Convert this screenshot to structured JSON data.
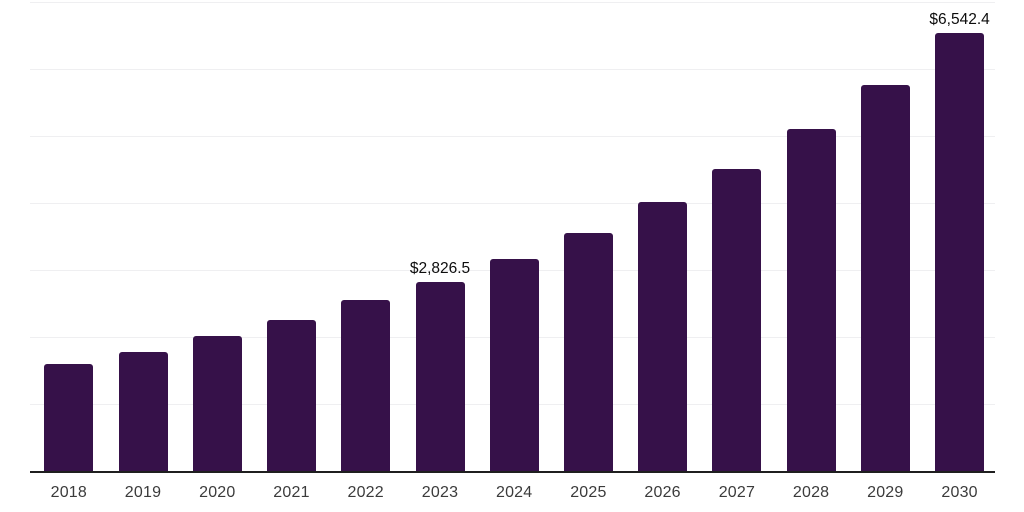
{
  "chart_data": {
    "type": "bar",
    "title": "",
    "xlabel": "",
    "ylabel": "",
    "categories": [
      "2018",
      "2019",
      "2020",
      "2021",
      "2022",
      "2023",
      "2024",
      "2025",
      "2026",
      "2027",
      "2028",
      "2029",
      "2030"
    ],
    "values": [
      1600,
      1780,
      2020,
      2250,
      2550,
      2826.5,
      3170,
      3560,
      4010,
      4510,
      5100,
      5760,
      6542.4
    ],
    "value_labels": {
      "2023": "$2,826.5",
      "2030": "$6,542.4"
    },
    "ylim": [
      0,
      7000
    ],
    "grid": {
      "horizontal": true,
      "interval": 1000
    },
    "y_axis_tick_labels": "none",
    "legend": "none"
  },
  "colors": {
    "bar": "#361149",
    "axis_line": "#1f1f1f",
    "gridline": "#efeff1",
    "x_tick_label": "#3b3b3b",
    "value_label": "#0d0d0d",
    "background": "#ffffff"
  }
}
